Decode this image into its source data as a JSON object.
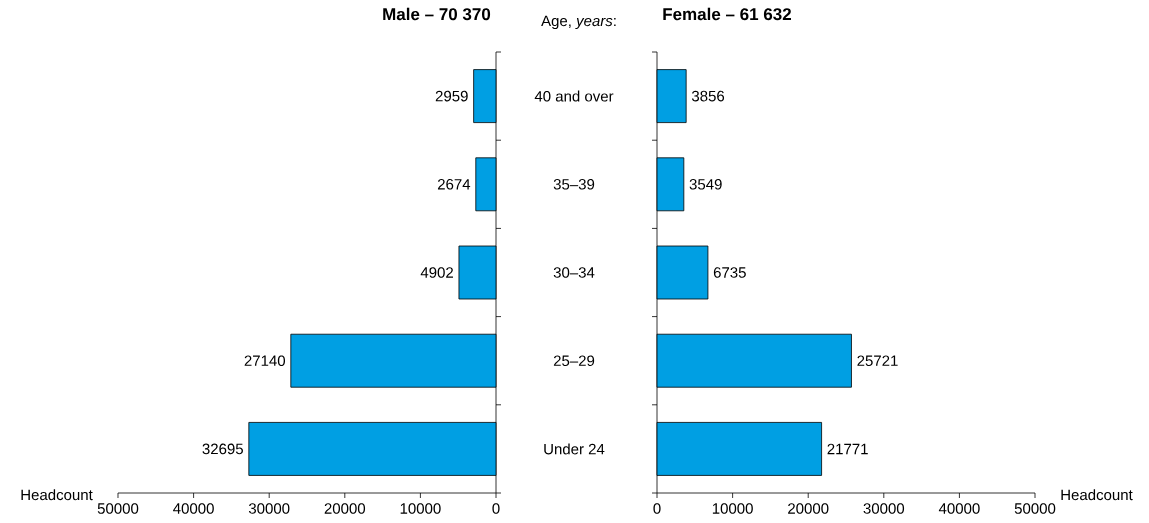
{
  "chart_data": [
    {
      "type": "bar",
      "orientation": "horizontal",
      "title": "**Male – 70 370**",
      "xlabel": "Headcount",
      "categories": [
        null,
        null,
        null,
        null,
        null
      ],
      "values": [
        2959,
        2674,
        4902,
        27140,
        32695
      ],
      "color": "#009fe3",
      "xlim": [
        50000,
        0
      ],
      "xticks": [
        50000,
        40000,
        30000,
        20000,
        10000,
        0
      ],
      "data_labels": true,
      "tick_labels": "x"
    },
    {
      "type": "bar",
      "orientation": "horizontal",
      "title": "**Female – 61 632**",
      "xlabel": "Headcount",
      "ylabel": "Age, *years*:",
      "categories": [
        "40 and over",
        "35–39",
        "30–34",
        "25–29",
        "Under 24"
      ],
      "values": [
        3856,
        3549,
        6735,
        25721,
        21771
      ],
      "color": "#009fe3",
      "xlim": [
        0,
        50000
      ],
      "xticks": [
        0,
        10000,
        20000,
        30000,
        40000,
        50000
      ],
      "data_labels": true
    }
  ]
}
